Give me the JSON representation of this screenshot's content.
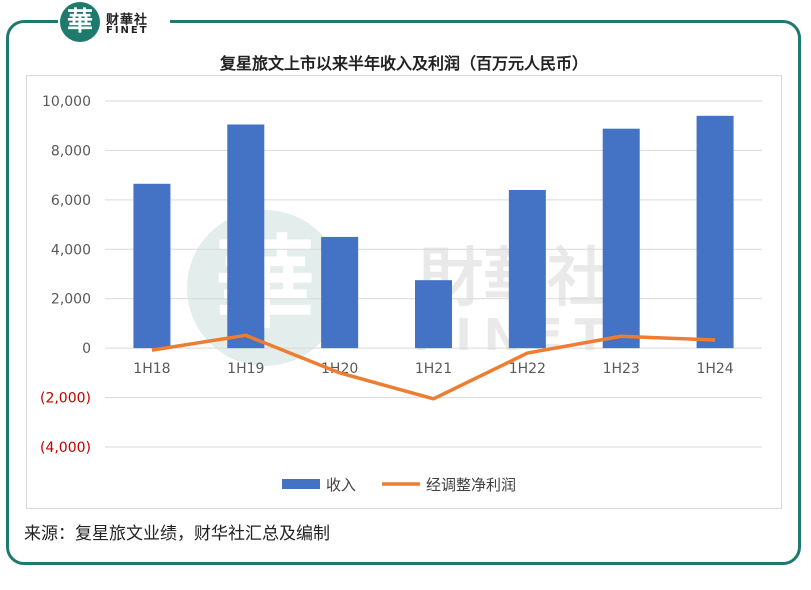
{
  "logo": {
    "glyph": "華",
    "cn": "财華社",
    "en": "FINET"
  },
  "watermark": {
    "glyph": "華",
    "cn": "財華社",
    "en": "FINET"
  },
  "source_note": "来源：复星旅文业绩，财华社汇总及编制",
  "colors": {
    "revenue": "#4472c4",
    "profit": "#ed7d31",
    "negative_tick": "#c00000",
    "border": "#1f7a6e"
  },
  "chart_data": {
    "type": "bar",
    "title": "复星旅文上市以来半年收入及利润（百万元人民币）",
    "categories": [
      "1H18",
      "1H19",
      "1H20",
      "1H21",
      "1H22",
      "1H23",
      "1H24"
    ],
    "series": [
      {
        "name": "收入",
        "type": "bar",
        "values": [
          6650,
          9050,
          4500,
          2750,
          6400,
          8880,
          9400
        ]
      },
      {
        "name": "经调整净利润",
        "type": "line",
        "values": [
          -80,
          520,
          -1000,
          -2050,
          -200,
          480,
          330
        ]
      }
    ],
    "ylim": [
      -4000,
      10000
    ],
    "yticks": [
      {
        "value": 10000,
        "label": "10,000"
      },
      {
        "value": 8000,
        "label": "8,000"
      },
      {
        "value": 6000,
        "label": "6,000"
      },
      {
        "value": 4000,
        "label": "4,000"
      },
      {
        "value": 2000,
        "label": "2,000"
      },
      {
        "value": 0,
        "label": "0"
      },
      {
        "value": -2000,
        "label": "(2,000)"
      },
      {
        "value": -4000,
        "label": "(4,000)"
      }
    ],
    "grid": true,
    "legend": "bottom"
  }
}
